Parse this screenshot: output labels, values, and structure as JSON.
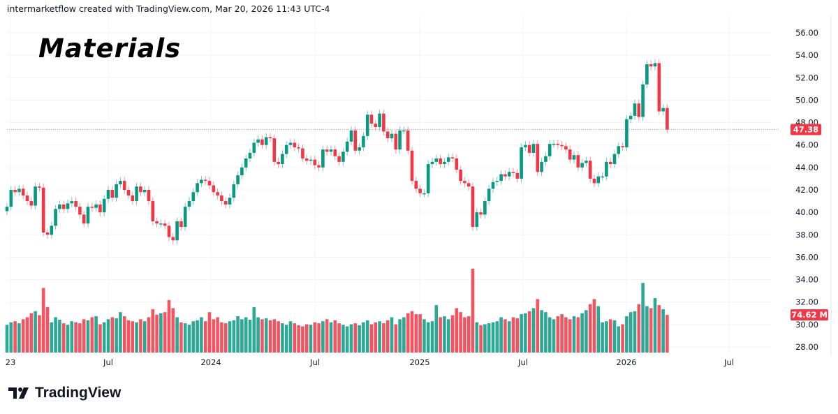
{
  "credit": "intermarketflow created with TradingView.com, Mar 20, 2026 11:43 UTC-4",
  "logo_text": "TradingView",
  "colors": {
    "up": "#089981",
    "down": "#f23645",
    "grid": "#f0f3fa"
  },
  "chart_data": {
    "type": "candlestick",
    "title": "Materials",
    "interval": "weekly",
    "grid": true,
    "y_ticks": [
      "56.00",
      "54.00",
      "52.00",
      "50.00",
      "48.00",
      "46.00",
      "44.00",
      "42.00",
      "40.00",
      "38.00",
      "36.00",
      "34.00",
      "32.00",
      "30.00",
      "28.00"
    ],
    "ylim": [
      28,
      56
    ],
    "x_ticks": [
      "23",
      "Jul",
      "2024",
      "Jul",
      "2025",
      "Jul",
      "2026",
      "Jul"
    ],
    "last_price_label": "47.38",
    "last_volume_label": "74.62 M",
    "close": [
      40.5,
      42.0,
      41.8,
      42.1,
      41.5,
      41.0,
      40.6,
      42.3,
      42.2,
      38.2,
      38.0,
      38.8,
      40.3,
      40.7,
      40.3,
      40.8,
      41.0,
      40.5,
      39.8,
      39.0,
      40.5,
      40.4,
      40.7,
      40.0,
      41.2,
      42.0,
      41.3,
      42.5,
      42.8,
      42.0,
      41.5,
      41.0,
      42.3,
      41.8,
      42.0,
      41.0,
      39.2,
      39.0,
      39.0,
      38.8,
      37.8,
      37.5,
      39.2,
      38.7,
      40.5,
      41.0,
      41.8,
      42.6,
      42.9,
      42.8,
      42.4,
      41.8,
      41.5,
      41.0,
      40.7,
      41.3,
      42.5,
      43.3,
      44.0,
      44.8,
      45.3,
      46.2,
      46.5,
      46.0,
      46.7,
      46.6,
      44.5,
      44.3,
      45.2,
      46.0,
      46.2,
      45.8,
      45.7,
      44.8,
      44.6,
      44.7,
      44.2,
      44.0,
      45.6,
      45.4,
      45.6,
      45.0,
      44.5,
      45.4,
      46.3,
      47.3,
      45.5,
      45.8,
      46.8,
      48.7,
      47.9,
      47.6,
      48.8,
      47.2,
      46.6,
      47.0,
      45.6,
      47.3,
      47.3,
      45.5,
      42.8,
      42.1,
      41.7,
      41.7,
      44.3,
      44.5,
      44.8,
      44.3,
      44.5,
      44.9,
      44.8,
      43.8,
      42.8,
      42.6,
      42.3,
      38.7,
      40.0,
      39.8,
      41.0,
      42.1,
      42.7,
      42.8,
      43.4,
      43.2,
      43.6,
      43.5,
      43.0,
      45.8,
      46.0,
      45.3,
      46.1,
      43.6,
      44.5,
      45.0,
      46.1,
      46.1,
      46.0,
      45.9,
      45.6,
      44.7,
      45.1,
      44.0,
      44.4,
      44.6,
      43.0,
      42.6,
      43.2,
      43.2,
      44.5,
      44.3,
      45.2,
      45.9,
      45.8,
      48.3,
      48.6,
      49.7,
      48.5,
      51.4,
      53.2,
      53.0,
      53.3,
      49.0,
      49.3,
      47.38
    ],
    "volume_millions": [
      55,
      60,
      62,
      58,
      66,
      70,
      78,
      82,
      74,
      128,
      90,
      60,
      70,
      65,
      58,
      55,
      62,
      60,
      58,
      66,
      64,
      70,
      72,
      56,
      60,
      66,
      70,
      68,
      80,
      72,
      64,
      62,
      60,
      66,
      62,
      70,
      86,
      75,
      78,
      80,
      104,
      88,
      70,
      60,
      58,
      55,
      62,
      64,
      70,
      62,
      80,
      66,
      70,
      60,
      58,
      62,
      64,
      72,
      66,
      70,
      65,
      90,
      70,
      66,
      68,
      64,
      66,
      62,
      58,
      55,
      62,
      58,
      54,
      52,
      56,
      55,
      60,
      58,
      62,
      66,
      60,
      64,
      58,
      55,
      52,
      56,
      58,
      54,
      60,
      64,
      56,
      60,
      62,
      58,
      64,
      70,
      56,
      66,
      70,
      78,
      82,
      76,
      76,
      66,
      60,
      62,
      94,
      70,
      72,
      66,
      74,
      88,
      80,
      70,
      72,
      166,
      60,
      54,
      56,
      58,
      60,
      62,
      70,
      66,
      62,
      70,
      68,
      76,
      78,
      82,
      88,
      106,
      84,
      80,
      70,
      66,
      72,
      76,
      70,
      66,
      72,
      70,
      78,
      84,
      96,
      106,
      92,
      60,
      62,
      66,
      64,
      52,
      56,
      72,
      80,
      82,
      96,
      138,
      92,
      88,
      108,
      94,
      86,
      74.62
    ]
  }
}
